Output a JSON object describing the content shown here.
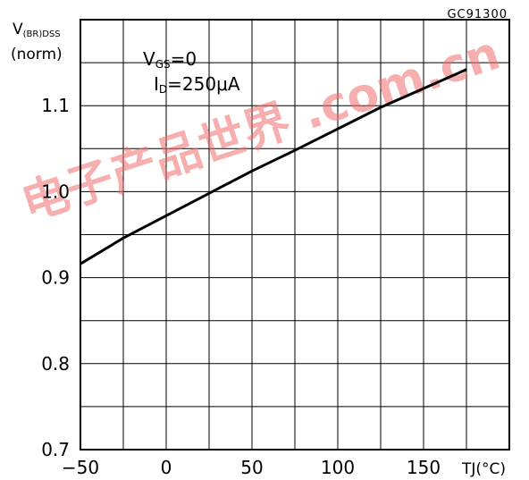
{
  "chart_data": {
    "type": "line",
    "code_label": "GC91300",
    "ylabel_main": "V",
    "ylabel_sub": "(BR)DSS",
    "ylabel_line2": "(norm)",
    "xlabel": "TJ(°C)",
    "condition_1_main": "V",
    "condition_1_sub": "GS",
    "condition_1_rest": "=0",
    "condition_2_main": "I",
    "condition_2_sub": "D",
    "condition_2_rest": "=250μA",
    "watermark": "电子产品世界 .com.cn",
    "xlim": [
      -50,
      200
    ],
    "ylim": [
      0.7,
      1.2
    ],
    "x_ticks": [
      -50,
      0,
      50,
      100,
      150
    ],
    "x_tick_labels": [
      "−50",
      "0",
      "50",
      "100",
      "150"
    ],
    "y_ticks": [
      0.7,
      0.8,
      0.9,
      1.0,
      1.1
    ],
    "y_tick_labels": [
      "0.7",
      "0.8",
      "0.9",
      "1.0",
      "1.1"
    ],
    "grid": true,
    "series": [
      {
        "x": [
          -50,
          -25,
          0,
          25,
          50,
          75,
          100,
          125,
          150,
          175
        ],
        "y": [
          0.916,
          0.946,
          0.972,
          0.998,
          1.024,
          1.048,
          1.073,
          1.098,
          1.12,
          1.142
        ]
      }
    ]
  }
}
